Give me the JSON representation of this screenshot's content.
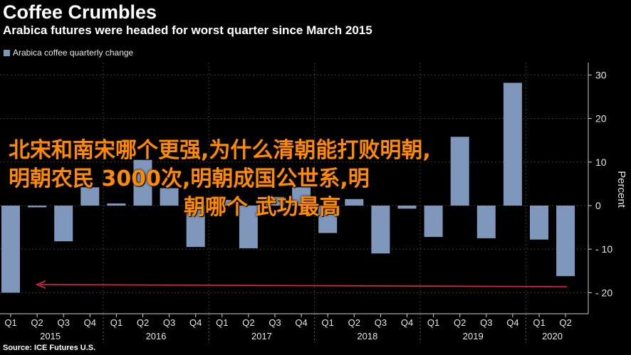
{
  "header": {
    "title": "Coffee Crumbles",
    "subtitle": "Arabica futures were headed for worst quarter since March 2015"
  },
  "legend": {
    "label": "Arabica coffee quarterly change",
    "color": "#7f97bb"
  },
  "source": "Source: ICE Futures U.S.",
  "overlay": {
    "line1": "北宋和南宋哪个更强,为什么清朝能打败明朝,",
    "line2": "明朝农民 3000次,明朝成国公世系,明",
    "line3": "朝哪个 武功最高"
  },
  "colors": {
    "background": "#000000",
    "bar": "#7f97bb",
    "arrow": "#e0284a",
    "overlay_text": "#ff8a00",
    "grid": "#3a3a3a"
  },
  "chart_data": {
    "type": "bar",
    "categories": [
      "Q1",
      "Q2",
      "Q3",
      "Q4",
      "Q1",
      "Q2",
      "Q3",
      "Q4",
      "Q1",
      "Q2",
      "Q3",
      "Q4",
      "Q1",
      "Q2",
      "Q3",
      "Q4",
      "Q1",
      "Q2",
      "Q3",
      "Q4",
      "Q1",
      "Q2"
    ],
    "year_labels": [
      "2015",
      "2016",
      "2017",
      "2018",
      "2019",
      "2020"
    ],
    "series": [
      {
        "name": "Arabica coffee quarterly change",
        "values": [
          -20,
          -0.4,
          -8.2,
          4.2,
          0.5,
          10.5,
          4.0,
          -9.5,
          1.3,
          -9.8,
          2.0,
          4.2,
          -6.3,
          1.5,
          -11,
          -0.7,
          -7.2,
          15.8,
          -7.5,
          28.2,
          -7.8,
          -16.2
        ]
      }
    ],
    "ylabel": "Percent",
    "ylim": [
      -25,
      33
    ],
    "yticks": [
      30,
      20,
      10,
      0,
      -10,
      -20
    ],
    "ytick_labels": [
      "30",
      "20",
      "10",
      "0",
      "- 10",
      "- 20"
    ],
    "annotation": {
      "type": "arrow",
      "direction": "left",
      "y": -18.3
    },
    "grid": true,
    "legend_position": "top-left"
  }
}
